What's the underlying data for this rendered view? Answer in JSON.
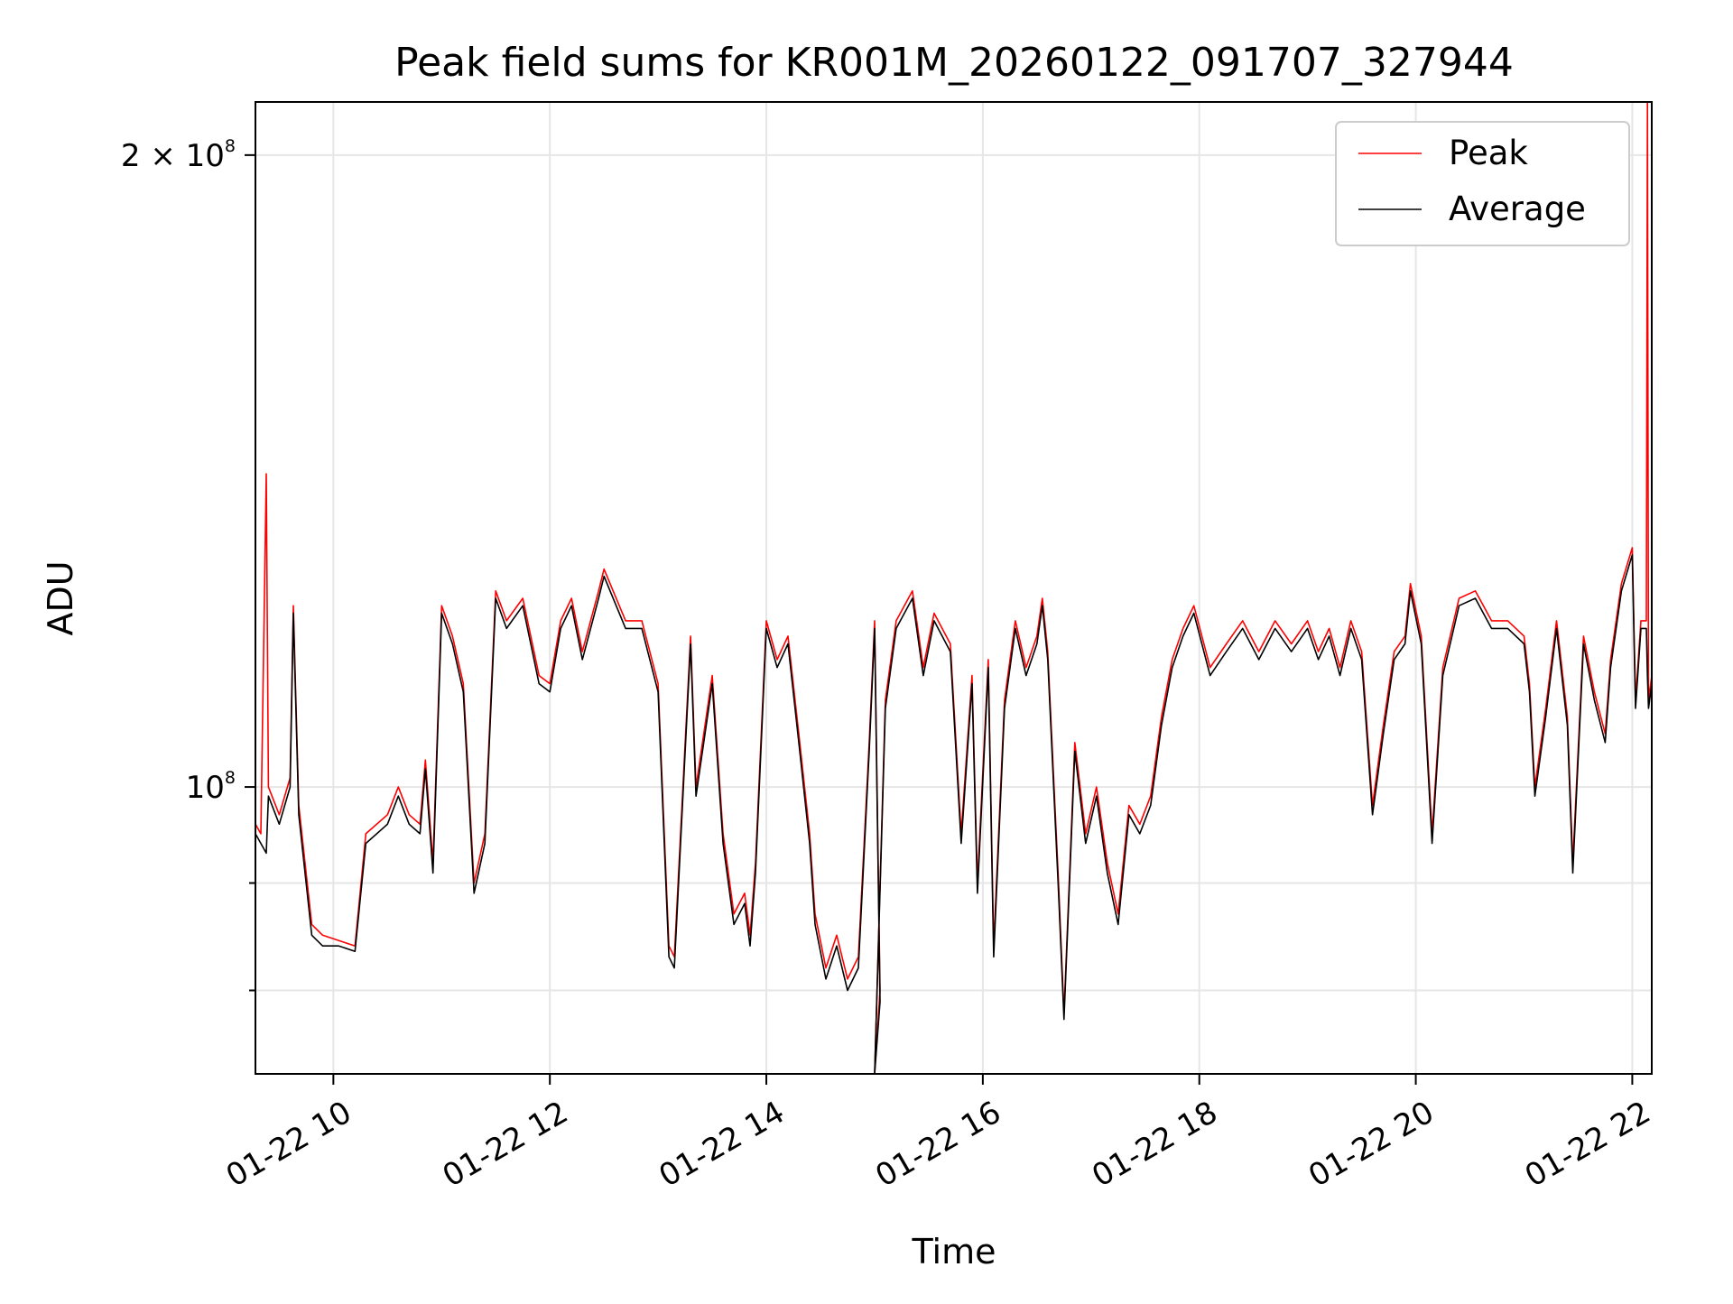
{
  "chart_data": {
    "type": "line",
    "title": "Peak field sums for KR001M_20260122_091707_327944",
    "xlabel": "Time",
    "ylabel": "ADU",
    "yscale": "log",
    "xlim": [
      9.28,
      22.18
    ],
    "ylim": [
      73000000,
      212000000
    ],
    "grid": true,
    "legend_position": "top-right",
    "x_ticks": [
      {
        "value": 10,
        "label": "01-22 10"
      },
      {
        "value": 12,
        "label": "01-22 12"
      },
      {
        "value": 14,
        "label": "01-22 14"
      },
      {
        "value": 16,
        "label": "01-22 16"
      },
      {
        "value": 18,
        "label": "01-22 18"
      },
      {
        "value": 20,
        "label": "01-22 20"
      },
      {
        "value": 22,
        "label": "01-22 22"
      }
    ],
    "y_major_ticks": [
      {
        "value": 100000000,
        "base": "10",
        "exp": "8",
        "prefix": ""
      },
      {
        "value": 200000000,
        "base": "10",
        "exp": "8",
        "prefix": "2 × "
      }
    ],
    "y_minor_ticks": [
      80000000,
      90000000
    ],
    "series": [
      {
        "name": "Peak",
        "color": "#ff0000",
        "points": [
          [
            9.28,
            96000000.0
          ],
          [
            9.33,
            95000000.0
          ],
          [
            9.38,
            141000000.0
          ],
          [
            9.4,
            100000000.0
          ],
          [
            9.5,
            97000000.0
          ],
          [
            9.6,
            101000000.0
          ],
          [
            9.63,
            122000000.0
          ],
          [
            9.68,
            98000000.0
          ],
          [
            9.8,
            86000000.0
          ],
          [
            9.9,
            85000000.0
          ],
          [
            10.05,
            84500000.0
          ],
          [
            10.2,
            84000000.0
          ],
          [
            10.3,
            95000000.0
          ],
          [
            10.5,
            97000000.0
          ],
          [
            10.6,
            100000000.0
          ],
          [
            10.7,
            97000000.0
          ],
          [
            10.8,
            96000000.0
          ],
          [
            10.85,
            103000000.0
          ],
          [
            10.92,
            92000000.0
          ],
          [
            11.0,
            122000000.0
          ],
          [
            11.1,
            118000000.0
          ],
          [
            11.2,
            112000000.0
          ],
          [
            11.3,
            90000000.0
          ],
          [
            11.4,
            95000000.0
          ],
          [
            11.5,
            124000000.0
          ],
          [
            11.6,
            120000000.0
          ],
          [
            11.75,
            123000000.0
          ],
          [
            11.9,
            113000000.0
          ],
          [
            12.0,
            112000000.0
          ],
          [
            12.1,
            120000000.0
          ],
          [
            12.2,
            123000000.0
          ],
          [
            12.3,
            116000000.0
          ],
          [
            12.45,
            124000000.0
          ],
          [
            12.5,
            127000000.0
          ],
          [
            12.7,
            120000000.0
          ],
          [
            12.85,
            120000000.0
          ],
          [
            13.0,
            112000000.0
          ],
          [
            13.1,
            84000000.0
          ],
          [
            13.15,
            83000000.0
          ],
          [
            13.25,
            105000000.0
          ],
          [
            13.3,
            118000000.0
          ],
          [
            13.35,
            100000000.0
          ],
          [
            13.5,
            113000000.0
          ],
          [
            13.6,
            95000000.0
          ],
          [
            13.7,
            87000000.0
          ],
          [
            13.8,
            89000000.0
          ],
          [
            13.85,
            85000000.0
          ],
          [
            13.9,
            92000000.0
          ],
          [
            14.0,
            120000000.0
          ],
          [
            14.1,
            115000000.0
          ],
          [
            14.2,
            118000000.0
          ],
          [
            14.3,
            106000000.0
          ],
          [
            14.4,
            95000000.0
          ],
          [
            14.45,
            87000000.0
          ],
          [
            14.55,
            82000000.0
          ],
          [
            14.65,
            85000000.0
          ],
          [
            14.75,
            81000000.0
          ],
          [
            14.85,
            83000000.0
          ],
          [
            14.95,
            105000000.0
          ],
          [
            15.0,
            120000000.0
          ],
          [
            15.05,
            80000000.0
          ],
          [
            15.0,
            73000000.0
          ],
          [
            15.1,
            110000000.0
          ],
          [
            15.2,
            120000000.0
          ],
          [
            15.35,
            124000000.0
          ],
          [
            15.45,
            114000000.0
          ],
          [
            15.55,
            121000000.0
          ],
          [
            15.7,
            117000000.0
          ],
          [
            15.8,
            95000000.0
          ],
          [
            15.9,
            113000000.0
          ],
          [
            15.95,
            90000000.0
          ],
          [
            16.05,
            115000000.0
          ],
          [
            16.1,
            84000000.0
          ],
          [
            16.2,
            110000000.0
          ],
          [
            16.3,
            120000000.0
          ],
          [
            16.4,
            114000000.0
          ],
          [
            16.5,
            118000000.0
          ],
          [
            16.55,
            123000000.0
          ],
          [
            16.6,
            116000000.0
          ],
          [
            16.7,
            90000000.0
          ],
          [
            16.75,
            78000000.0
          ],
          [
            16.85,
            105000000.0
          ],
          [
            16.95,
            95000000.0
          ],
          [
            17.05,
            100000000.0
          ],
          [
            17.15,
            92000000.0
          ],
          [
            17.25,
            87000000.0
          ],
          [
            17.35,
            98000000.0
          ],
          [
            17.45,
            96000000.0
          ],
          [
            17.55,
            99000000.0
          ],
          [
            17.65,
            108000000.0
          ],
          [
            17.75,
            115000000.0
          ],
          [
            17.85,
            119000000.0
          ],
          [
            17.95,
            122000000.0
          ],
          [
            18.1,
            114000000.0
          ],
          [
            18.25,
            117000000.0
          ],
          [
            18.4,
            120000000.0
          ],
          [
            18.55,
            116000000.0
          ],
          [
            18.7,
            120000000.0
          ],
          [
            18.85,
            117000000.0
          ],
          [
            19.0,
            120000000.0
          ],
          [
            19.1,
            116000000.0
          ],
          [
            19.2,
            119000000.0
          ],
          [
            19.3,
            114000000.0
          ],
          [
            19.4,
            120000000.0
          ],
          [
            19.5,
            116000000.0
          ],
          [
            19.6,
            98000000.0
          ],
          [
            19.7,
            107000000.0
          ],
          [
            19.8,
            116000000.0
          ],
          [
            19.9,
            118000000.0
          ],
          [
            19.95,
            125000000.0
          ],
          [
            20.05,
            118000000.0
          ],
          [
            20.15,
            95000000.0
          ],
          [
            20.25,
            114000000.0
          ],
          [
            20.4,
            123000000.0
          ],
          [
            20.55,
            124000000.0
          ],
          [
            20.7,
            120000000.0
          ],
          [
            20.85,
            120000000.0
          ],
          [
            21.0,
            118000000.0
          ],
          [
            21.05,
            112000000.0
          ],
          [
            21.1,
            100000000.0
          ],
          [
            21.2,
            109000000.0
          ],
          [
            21.3,
            120000000.0
          ],
          [
            21.4,
            108000000.0
          ],
          [
            21.45,
            92000000.0
          ],
          [
            21.55,
            118000000.0
          ],
          [
            21.65,
            111000000.0
          ],
          [
            21.75,
            106000000.0
          ],
          [
            21.8,
            115000000.0
          ],
          [
            21.9,
            125000000.0
          ],
          [
            22.0,
            130000000.0
          ],
          [
            22.03,
            110000000.0
          ],
          [
            22.08,
            120000000.0
          ],
          [
            22.13,
            120000000.0
          ],
          [
            22.14,
            212000000.0
          ],
          [
            22.15,
            110000000.0
          ],
          [
            22.18,
            113000000.0
          ]
        ]
      },
      {
        "name": "Average",
        "color": "#000000",
        "points": [
          [
            9.28,
            95000000.0
          ],
          [
            9.33,
            94000000.0
          ],
          [
            9.38,
            93000000.0
          ],
          [
            9.4,
            99000000.0
          ],
          [
            9.5,
            96000000.0
          ],
          [
            9.6,
            100000000.0
          ],
          [
            9.63,
            121000000.0
          ],
          [
            9.68,
            97000000.0
          ],
          [
            9.8,
            85000000.0
          ],
          [
            9.9,
            84000000.0
          ],
          [
            10.05,
            84000000.0
          ],
          [
            10.2,
            83500000.0
          ],
          [
            10.3,
            94000000.0
          ],
          [
            10.5,
            96000000.0
          ],
          [
            10.6,
            99000000.0
          ],
          [
            10.7,
            96000000.0
          ],
          [
            10.8,
            95000000.0
          ],
          [
            10.85,
            102000000.0
          ],
          [
            10.92,
            91000000.0
          ],
          [
            11.0,
            121000000.0
          ],
          [
            11.1,
            117000000.0
          ],
          [
            11.2,
            111000000.0
          ],
          [
            11.3,
            89000000.0
          ],
          [
            11.4,
            94000000.0
          ],
          [
            11.5,
            123000000.0
          ],
          [
            11.6,
            119000000.0
          ],
          [
            11.75,
            122000000.0
          ],
          [
            11.9,
            112000000.0
          ],
          [
            12.0,
            111000000.0
          ],
          [
            12.1,
            119000000.0
          ],
          [
            12.2,
            122000000.0
          ],
          [
            12.3,
            115000000.0
          ],
          [
            12.45,
            123000000.0
          ],
          [
            12.5,
            126000000.0
          ],
          [
            12.7,
            119000000.0
          ],
          [
            12.85,
            119000000.0
          ],
          [
            13.0,
            111000000.0
          ],
          [
            13.1,
            83000000.0
          ],
          [
            13.15,
            82000000.0
          ],
          [
            13.25,
            104000000.0
          ],
          [
            13.3,
            117000000.0
          ],
          [
            13.35,
            99000000.0
          ],
          [
            13.5,
            112000000.0
          ],
          [
            13.6,
            94000000.0
          ],
          [
            13.7,
            86000000.0
          ],
          [
            13.8,
            88000000.0
          ],
          [
            13.85,
            84000000.0
          ],
          [
            13.9,
            91000000.0
          ],
          [
            14.0,
            119000000.0
          ],
          [
            14.1,
            114000000.0
          ],
          [
            14.2,
            117000000.0
          ],
          [
            14.3,
            105000000.0
          ],
          [
            14.4,
            94000000.0
          ],
          [
            14.45,
            86000000.0
          ],
          [
            14.55,
            81000000.0
          ],
          [
            14.65,
            84000000.0
          ],
          [
            14.75,
            80000000.0
          ],
          [
            14.85,
            82000000.0
          ],
          [
            14.95,
            104000000.0
          ],
          [
            15.0,
            119000000.0
          ],
          [
            15.05,
            79000000.0
          ],
          [
            15.0,
            73000000.0
          ],
          [
            15.1,
            109000000.0
          ],
          [
            15.2,
            119000000.0
          ],
          [
            15.35,
            123000000.0
          ],
          [
            15.45,
            113000000.0
          ],
          [
            15.55,
            120000000.0
          ],
          [
            15.7,
            116000000.0
          ],
          [
            15.8,
            94000000.0
          ],
          [
            15.9,
            112000000.0
          ],
          [
            15.95,
            89000000.0
          ],
          [
            16.05,
            114000000.0
          ],
          [
            16.1,
            83000000.0
          ],
          [
            16.2,
            109000000.0
          ],
          [
            16.3,
            119000000.0
          ],
          [
            16.4,
            113000000.0
          ],
          [
            16.5,
            117000000.0
          ],
          [
            16.55,
            122000000.0
          ],
          [
            16.6,
            115000000.0
          ],
          [
            16.7,
            89000000.0
          ],
          [
            16.75,
            77500000.0
          ],
          [
            16.85,
            104000000.0
          ],
          [
            16.95,
            94000000.0
          ],
          [
            17.05,
            99000000.0
          ],
          [
            17.15,
            91000000.0
          ],
          [
            17.25,
            86000000.0
          ],
          [
            17.35,
            97000000.0
          ],
          [
            17.45,
            95000000.0
          ],
          [
            17.55,
            98000000.0
          ],
          [
            17.65,
            107000000.0
          ],
          [
            17.75,
            114000000.0
          ],
          [
            17.85,
            118000000.0
          ],
          [
            17.95,
            121000000.0
          ],
          [
            18.1,
            113000000.0
          ],
          [
            18.25,
            116000000.0
          ],
          [
            18.4,
            119000000.0
          ],
          [
            18.55,
            115000000.0
          ],
          [
            18.7,
            119000000.0
          ],
          [
            18.85,
            116000000.0
          ],
          [
            19.0,
            119000000.0
          ],
          [
            19.1,
            115000000.0
          ],
          [
            19.2,
            118000000.0
          ],
          [
            19.3,
            113000000.0
          ],
          [
            19.4,
            119000000.0
          ],
          [
            19.5,
            115000000.0
          ],
          [
            19.6,
            97000000.0
          ],
          [
            19.7,
            106000000.0
          ],
          [
            19.8,
            115000000.0
          ],
          [
            19.9,
            117000000.0
          ],
          [
            19.95,
            124000000.0
          ],
          [
            20.05,
            117000000.0
          ],
          [
            20.15,
            94000000.0
          ],
          [
            20.25,
            113000000.0
          ],
          [
            20.4,
            122000000.0
          ],
          [
            20.55,
            123000000.0
          ],
          [
            20.7,
            119000000.0
          ],
          [
            20.85,
            119000000.0
          ],
          [
            21.0,
            117000000.0
          ],
          [
            21.05,
            111000000.0
          ],
          [
            21.1,
            99000000.0
          ],
          [
            21.2,
            108000000.0
          ],
          [
            21.3,
            119000000.0
          ],
          [
            21.4,
            107000000.0
          ],
          [
            21.45,
            91000000.0
          ],
          [
            21.55,
            117000000.0
          ],
          [
            21.65,
            110000000.0
          ],
          [
            21.75,
            105000000.0
          ],
          [
            21.8,
            114000000.0
          ],
          [
            21.9,
            124000000.0
          ],
          [
            22.0,
            129000000.0
          ],
          [
            22.03,
            109000000.0
          ],
          [
            22.08,
            119000000.0
          ],
          [
            22.13,
            119000000.0
          ],
          [
            22.14,
            113000000.0
          ],
          [
            22.15,
            109000000.0
          ],
          [
            22.18,
            112000000.0
          ]
        ]
      }
    ]
  }
}
